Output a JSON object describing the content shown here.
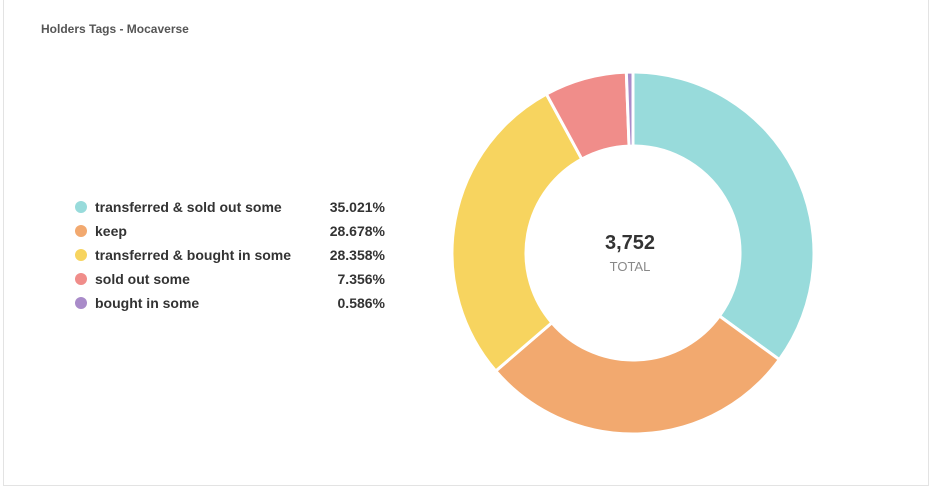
{
  "header": {
    "title": "Holders Tags - Mocaverse"
  },
  "chart_data": {
    "type": "pie",
    "subtype": "donut",
    "title": "Holders Tags - Mocaverse",
    "center_value": "3,752",
    "center_label": "TOTAL",
    "legend_position": "left",
    "slices": [
      {
        "name": "transferred & sold out some",
        "percent_label": "35.021%",
        "value": 35.021,
        "color": "#98dbdb"
      },
      {
        "name": "keep",
        "percent_label": "28.678%",
        "value": 28.678,
        "color": "#f2a96f"
      },
      {
        "name": "transferred & bought in some",
        "percent_label": "28.358%",
        "value": 28.358,
        "color": "#f7d45f"
      },
      {
        "name": "sold out some",
        "percent_label": "7.356%",
        "value": 7.356,
        "color": "#f08d8a"
      },
      {
        "name": "bought in some",
        "percent_label": "0.586%",
        "value": 0.586,
        "color": "#a98bc9"
      }
    ]
  }
}
